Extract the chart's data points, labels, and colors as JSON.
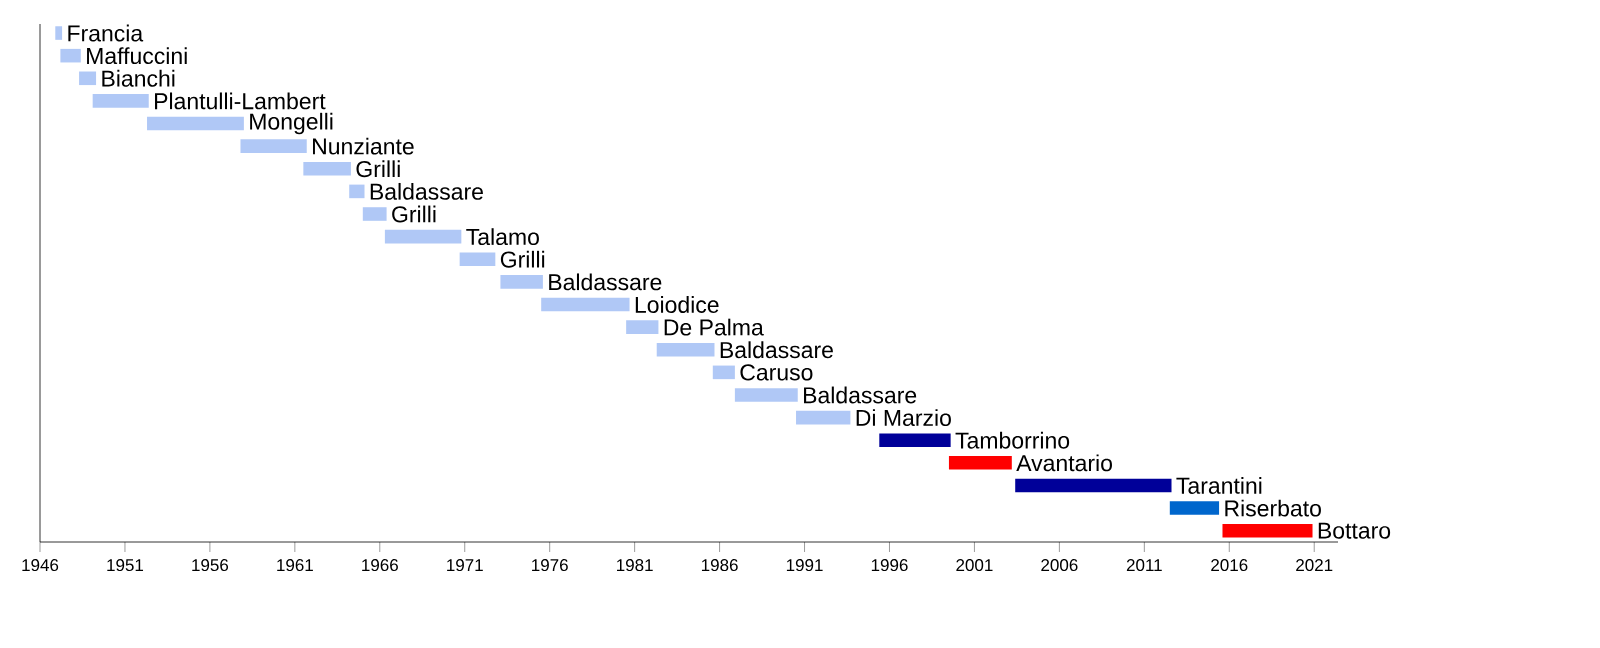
{
  "chart_data": {
    "type": "bar",
    "orientation": "horizontal",
    "categories": [
      "Francia",
      "Maffuccini",
      "Bianchi",
      "Plantulli-Lambert",
      "Mongelli",
      "Nunziante",
      "Grilli",
      "Baldassare",
      "Grilli",
      "Talamo",
      "Grilli",
      "Baldassare",
      "Loiodice",
      "De Palma",
      "Baldassare",
      "Caruso",
      "Baldassare",
      "Di Marzio",
      "Tamborrino",
      "Avantario",
      "Tarantini",
      "Riserbato",
      "Bottaro"
    ],
    "base": [
      1946.9,
      1947.2,
      1948.3,
      1949.1,
      1952.3,
      1957.8,
      1961.5,
      1964.2,
      1965.0,
      1966.3,
      1970.7,
      1973.1,
      1975.5,
      1980.5,
      1982.3,
      1985.6,
      1986.9,
      1990.5,
      1995.4,
      1999.5,
      2003.4,
      2012.5,
      2015.6
    ],
    "values": [
      0.4,
      1.2,
      1.0,
      3.3,
      5.7,
      3.9,
      2.8,
      0.9,
      1.4,
      4.5,
      2.1,
      2.5,
      5.2,
      1.9,
      3.4,
      1.3,
      3.7,
      3.2,
      4.2,
      3.7,
      9.2,
      2.9,
      5.3
    ],
    "colors": [
      "#b0c8f6",
      "#b0c8f6",
      "#b0c8f6",
      "#b0c8f6",
      "#b0c8f6",
      "#b0c8f6",
      "#b0c8f6",
      "#b0c8f6",
      "#b0c8f6",
      "#b0c8f6",
      "#b0c8f6",
      "#b0c8f6",
      "#b0c8f6",
      "#b0c8f6",
      "#b0c8f6",
      "#b0c8f6",
      "#b0c8f6",
      "#b0c8f6",
      "#000099",
      "#ff0000",
      "#000099",
      "#0066cc",
      "#ff0000"
    ],
    "xlim": [
      1946,
      2022.4
    ],
    "xticks": [
      1946,
      1951,
      1956,
      1961,
      1966,
      1971,
      1976,
      1981,
      1986,
      1991,
      1996,
      2001,
      2006,
      2011,
      2016,
      2021
    ]
  }
}
